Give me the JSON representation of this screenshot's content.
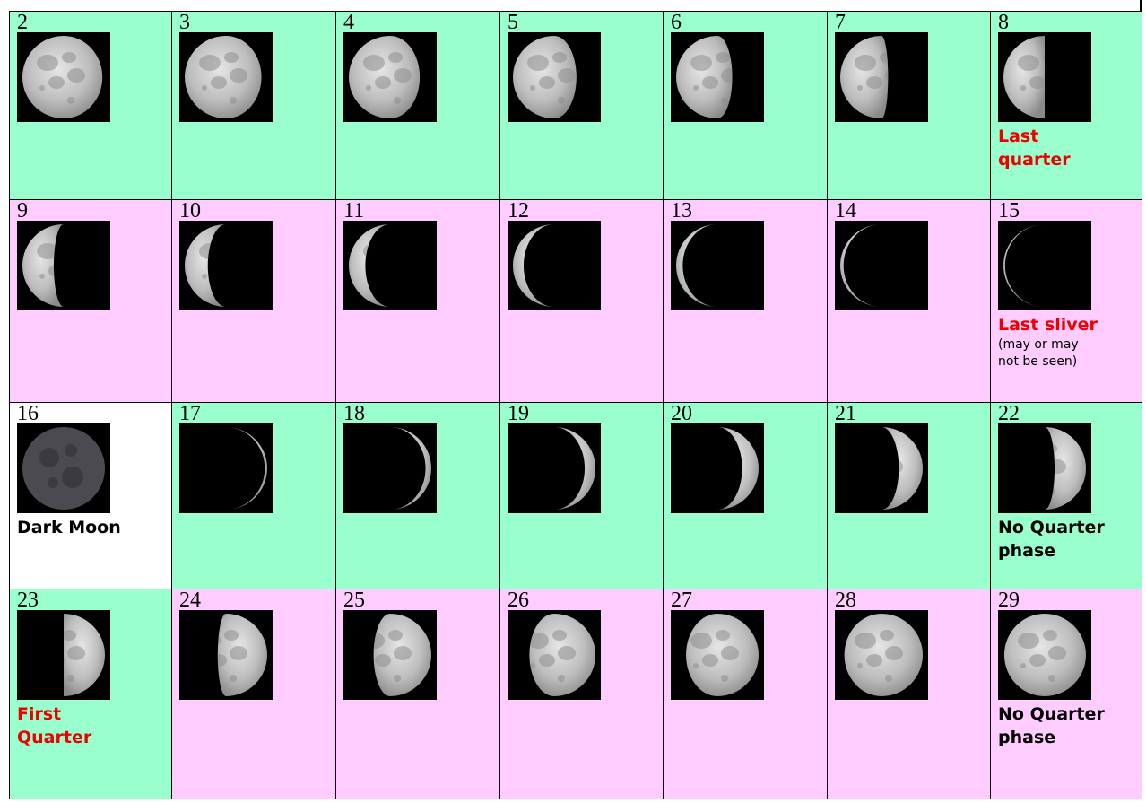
{
  "colors": {
    "green_cell": "#99ffcc",
    "pink_cell": "#ffccff",
    "white_cell": "#ffffff",
    "label_red": "#ee0000",
    "label_black": "#000000"
  },
  "rows": [
    {
      "cells": [
        {
          "day": "2",
          "bg": "green",
          "illum": 0.97,
          "lit": "left"
        },
        {
          "day": "3",
          "bg": "green",
          "illum": 0.93,
          "lit": "left"
        },
        {
          "day": "4",
          "bg": "green",
          "illum": 0.86,
          "lit": "left"
        },
        {
          "day": "5",
          "bg": "green",
          "illum": 0.77,
          "lit": "left"
        },
        {
          "day": "6",
          "bg": "green",
          "illum": 0.68,
          "lit": "left"
        },
        {
          "day": "7",
          "bg": "green",
          "illum": 0.58,
          "lit": "left"
        },
        {
          "day": "8",
          "bg": "green",
          "illum": 0.5,
          "lit": "left",
          "label": "Last\nquarter",
          "label_color": "red"
        }
      ]
    },
    {
      "cells": [
        {
          "day": "9",
          "bg": "pink",
          "illum": 0.38,
          "lit": "left"
        },
        {
          "day": "10",
          "bg": "pink",
          "illum": 0.28,
          "lit": "left"
        },
        {
          "day": "11",
          "bg": "pink",
          "illum": 0.2,
          "lit": "left"
        },
        {
          "day": "12",
          "bg": "pink",
          "illum": 0.13,
          "lit": "left"
        },
        {
          "day": "13",
          "bg": "pink",
          "illum": 0.08,
          "lit": "left"
        },
        {
          "day": "14",
          "bg": "pink",
          "illum": 0.04,
          "lit": "left"
        },
        {
          "day": "15",
          "bg": "pink",
          "illum": 0.02,
          "lit": "left",
          "label": "Last sliver",
          "label_color": "red",
          "note": "(may or may\nnot be seen)"
        }
      ]
    },
    {
      "cells": [
        {
          "day": "16",
          "bg": "white",
          "illum": 0,
          "lit": "none",
          "label": "Dark Moon",
          "label_color": "black"
        },
        {
          "day": "17",
          "bg": "green",
          "illum": 0.03,
          "lit": "right"
        },
        {
          "day": "18",
          "bg": "green",
          "illum": 0.07,
          "lit": "right"
        },
        {
          "day": "19",
          "bg": "green",
          "illum": 0.13,
          "lit": "right"
        },
        {
          "day": "20",
          "bg": "green",
          "illum": 0.2,
          "lit": "right"
        },
        {
          "day": "21",
          "bg": "green",
          "illum": 0.29,
          "lit": "right"
        },
        {
          "day": "22",
          "bg": "green",
          "illum": 0.38,
          "lit": "right",
          "label": "No Quarter\nphase",
          "label_color": "black"
        }
      ]
    },
    {
      "cells": [
        {
          "day": "23",
          "bg": "green",
          "illum": 0.5,
          "lit": "right",
          "label": "First\nQuarter",
          "label_color": "red"
        },
        {
          "day": "24",
          "bg": "pink",
          "illum": 0.6,
          "lit": "right"
        },
        {
          "day": "25",
          "bg": "pink",
          "illum": 0.7,
          "lit": "right"
        },
        {
          "day": "26",
          "bg": "pink",
          "illum": 0.8,
          "lit": "right"
        },
        {
          "day": "27",
          "bg": "pink",
          "illum": 0.88,
          "lit": "right"
        },
        {
          "day": "28",
          "bg": "pink",
          "illum": 0.95,
          "lit": "right"
        },
        {
          "day": "29",
          "bg": "pink",
          "illum": 0.99,
          "lit": "right",
          "label": "No Quarter\nphase",
          "label_color": "black"
        }
      ]
    }
  ]
}
